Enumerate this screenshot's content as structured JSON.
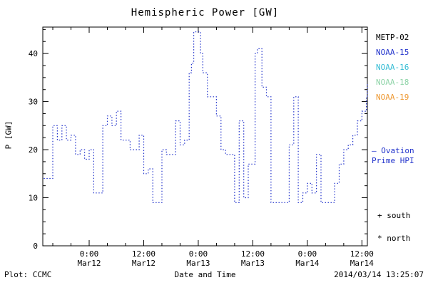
{
  "title": "Hemispheric Power [GW]",
  "legend": {
    "satellites": [
      {
        "label": "METP-02",
        "color": "#000000"
      },
      {
        "label": "NOAA-15",
        "color": "#2233cc"
      },
      {
        "label": "NOAA-16",
        "color": "#33bcd4"
      },
      {
        "label": "NOAA-18",
        "color": "#8fd4a8"
      },
      {
        "label": "NOAA-19",
        "color": "#ee9933"
      }
    ],
    "ovation_line1": "— Ovation",
    "ovation_line2": "Prime HPI",
    "ovation_color": "#2233cc",
    "south_label": "+ south",
    "north_label": "* north"
  },
  "footer": {
    "left": "Plot: CCMC",
    "center": "Date and Time",
    "right": "2014/03/14 13:25:07"
  },
  "chart_data": {
    "type": "line",
    "step": true,
    "title": "Hemispheric Power [GW]",
    "xlabel": "Date and Time",
    "ylabel": "P [GW]",
    "line_color": "#2233cc",
    "line_style": "dotted",
    "grid": false,
    "ylim": [
      0,
      45.5
    ],
    "y_ticks": [
      0,
      10,
      20,
      30,
      40
    ],
    "y_minor_step": 2.5,
    "x_units": "hours since 2014-03-11 00:00 UT",
    "x_range_hours": [
      13.8,
      85.2
    ],
    "x_minor_step": 4,
    "x_ticks": [
      {
        "hour": 24,
        "time": "0:00",
        "date": "Mar12"
      },
      {
        "hour": 36,
        "time": "12:00",
        "date": "Mar12"
      },
      {
        "hour": 48,
        "time": "0:00",
        "date": "Mar13"
      },
      {
        "hour": 60,
        "time": "12:00",
        "date": "Mar13"
      },
      {
        "hour": 72,
        "time": "0:00",
        "date": "Mar14"
      },
      {
        "hour": 84,
        "time": "12:00",
        "date": "Mar14"
      }
    ],
    "series": [
      {
        "name": "Ovation Prime HPI",
        "points": [
          [
            14,
            14
          ],
          [
            15,
            14
          ],
          [
            16,
            25
          ],
          [
            17,
            22
          ],
          [
            18,
            25
          ],
          [
            19,
            22
          ],
          [
            20,
            23
          ],
          [
            21,
            19
          ],
          [
            22,
            20
          ],
          [
            23,
            18
          ],
          [
            24,
            20
          ],
          [
            25,
            11
          ],
          [
            26,
            11
          ],
          [
            27,
            25
          ],
          [
            28,
            27
          ],
          [
            29,
            25
          ],
          [
            30,
            28
          ],
          [
            31,
            22
          ],
          [
            32,
            22
          ],
          [
            33,
            20
          ],
          [
            34,
            20
          ],
          [
            35,
            23
          ],
          [
            36,
            15
          ],
          [
            37,
            16
          ],
          [
            38,
            9
          ],
          [
            39,
            9
          ],
          [
            40,
            20
          ],
          [
            41,
            19
          ],
          [
            42,
            19
          ],
          [
            43,
            26
          ],
          [
            44,
            21
          ],
          [
            45,
            22
          ],
          [
            46,
            36
          ],
          [
            46.5,
            38
          ],
          [
            47,
            44.5
          ],
          [
            48.5,
            40
          ],
          [
            49,
            36
          ],
          [
            50,
            31
          ],
          [
            51,
            31
          ],
          [
            52,
            27
          ],
          [
            53,
            20
          ],
          [
            54,
            19
          ],
          [
            55,
            19
          ],
          [
            56,
            9
          ],
          [
            57,
            26
          ],
          [
            58,
            10
          ],
          [
            59,
            17
          ],
          [
            60,
            17
          ],
          [
            60.5,
            40
          ],
          [
            61,
            41
          ],
          [
            62,
            33
          ],
          [
            63,
            31
          ],
          [
            64,
            9
          ],
          [
            65,
            9
          ],
          [
            66,
            9
          ],
          [
            67,
            9
          ],
          [
            68,
            21
          ],
          [
            69,
            31
          ],
          [
            70,
            9
          ],
          [
            71,
            11
          ],
          [
            72,
            13
          ],
          [
            73,
            11
          ],
          [
            74,
            19
          ],
          [
            75,
            9
          ],
          [
            76,
            9
          ],
          [
            77,
            9
          ],
          [
            78,
            13
          ],
          [
            79,
            17
          ],
          [
            80,
            20
          ],
          [
            81,
            21
          ],
          [
            82,
            23
          ],
          [
            83,
            26
          ],
          [
            84,
            28
          ],
          [
            85,
            31
          ],
          [
            85.2,
            34
          ]
        ]
      }
    ]
  }
}
